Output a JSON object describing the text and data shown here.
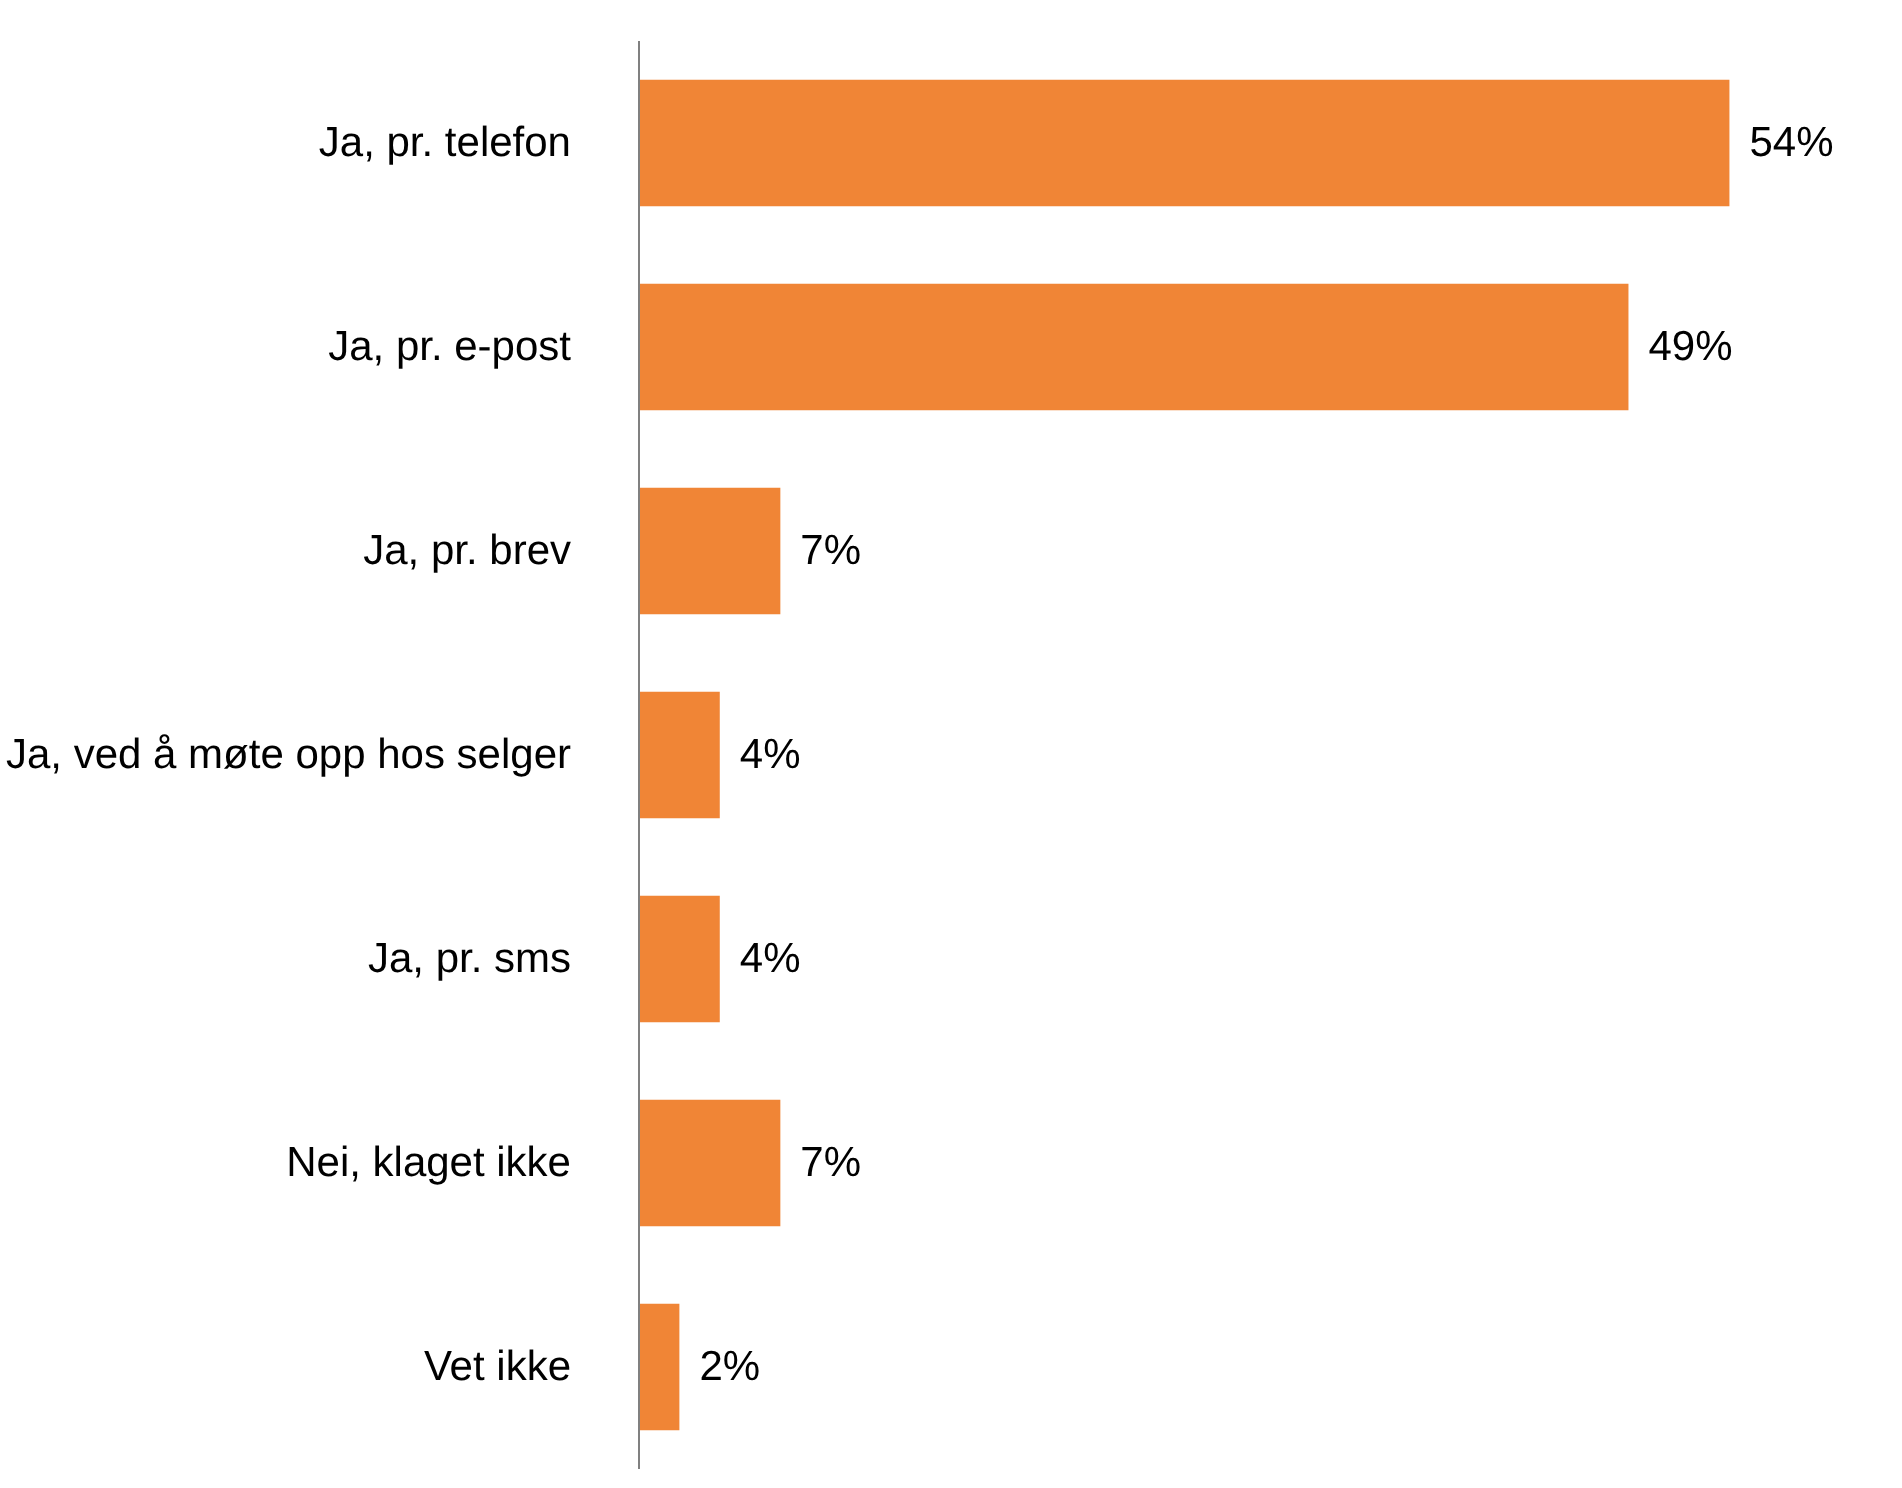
{
  "chart_data": {
    "type": "bar",
    "orientation": "horizontal",
    "categories": [
      "Ja, pr. telefon",
      "Ja, pr. e-post",
      "Ja, pr. brev",
      "Ja, ved å møte opp hos selger",
      "Ja, pr. sms",
      "Nei, klaget ikke",
      "Vet ikke"
    ],
    "values": [
      54,
      49,
      7,
      4,
      4,
      7,
      2
    ],
    "value_labels": [
      "54%",
      "49%",
      "7%",
      "4%",
      "4%",
      "7%",
      "2%"
    ],
    "color": "#f08536",
    "grid": false,
    "tick_labels": "y"
  }
}
